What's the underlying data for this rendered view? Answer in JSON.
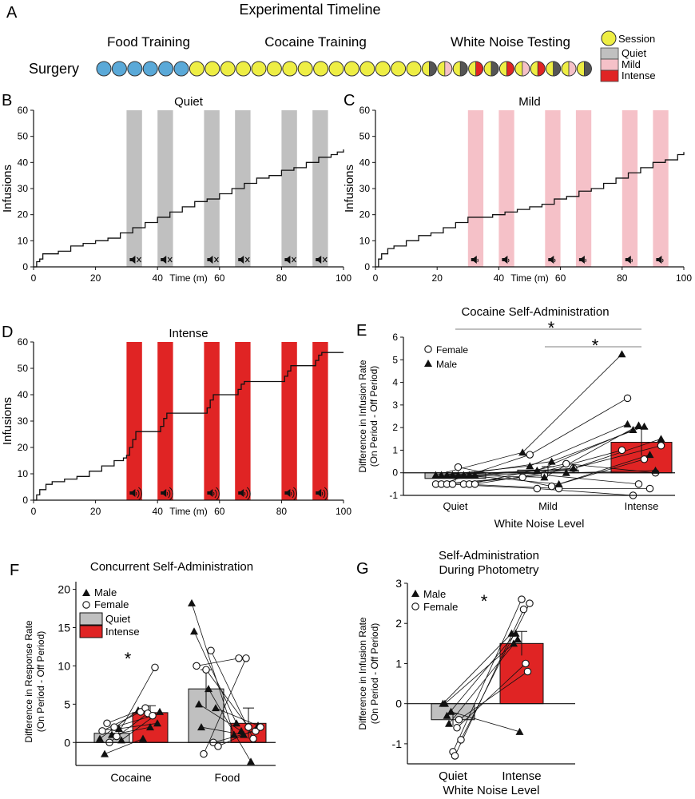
{
  "colors": {
    "blue": "#5aa9d8",
    "yellow": "#eeee44",
    "quiet": "#c0c0c0",
    "mild": "#f5c1c8",
    "intense": "#e02424",
    "line": "#111111"
  },
  "panel_a": {
    "letter": "A",
    "title": "Experimental Timeline",
    "phase_food": "Food Training",
    "phase_cocaine": "Cocaine Training",
    "phase_noise": "White Noise Testing",
    "surgery": "Surgery",
    "sessions": [
      "blue",
      "blue",
      "blue",
      "blue",
      "blue",
      "blue",
      "yellow",
      "yellow",
      "yellow",
      "yellow",
      "yellow",
      "yellow",
      "yellow",
      "yellow",
      "yellow",
      "yellow",
      "yellow",
      "yellow",
      "yellow",
      "yellow",
      "yellow",
      "quiet",
      "mild",
      "quiet",
      "intense",
      "quiet",
      "intense",
      "mild",
      "intense",
      "quiet",
      "mild",
      "quiet"
    ],
    "legend": [
      {
        "key": "session",
        "label": "Session"
      },
      {
        "key": "quiet",
        "label": "Quiet"
      },
      {
        "key": "mild",
        "label": "Mild"
      },
      {
        "key": "intense",
        "label": "Intense"
      }
    ]
  },
  "chart_data": [
    {
      "id": "B",
      "type": "line",
      "letter": "B",
      "title": "Quiet",
      "condition": "quiet",
      "xlabel": "Time (m)",
      "ylabel": "Infusions",
      "xlim": [
        0,
        100
      ],
      "ylim": [
        0,
        60
      ],
      "xticks": [
        0,
        20,
        40,
        60,
        80,
        100
      ],
      "yticks": [
        0,
        10,
        20,
        30,
        40,
        50,
        60
      ],
      "on_periods": [
        [
          30,
          35
        ],
        [
          40,
          45
        ],
        [
          55,
          60
        ],
        [
          65,
          70
        ],
        [
          80,
          85
        ],
        [
          90,
          95
        ]
      ],
      "x": [
        0,
        1,
        2,
        3,
        5,
        8,
        12,
        16,
        20,
        24,
        28,
        32,
        36,
        40,
        44,
        48,
        52,
        56,
        60,
        64,
        68,
        72,
        76,
        80,
        84,
        88,
        92,
        96,
        98,
        100
      ],
      "y": [
        0,
        2,
        3,
        5,
        5,
        6,
        8,
        9,
        10,
        11,
        13,
        15,
        17,
        19,
        21,
        23,
        25,
        26,
        28,
        30,
        32,
        34,
        35,
        37,
        38,
        40,
        42,
        43,
        44,
        45
      ]
    },
    {
      "id": "C",
      "type": "line",
      "letter": "C",
      "title": "Mild",
      "condition": "mild",
      "xlabel": "Time (m)",
      "ylabel": "Infusions",
      "xlim": [
        0,
        100
      ],
      "ylim": [
        0,
        60
      ],
      "xticks": [
        0,
        20,
        40,
        60,
        80,
        100
      ],
      "yticks": [
        0,
        10,
        20,
        30,
        40,
        50,
        60
      ],
      "on_periods": [
        [
          30,
          35
        ],
        [
          40,
          45
        ],
        [
          55,
          60
        ],
        [
          65,
          70
        ],
        [
          80,
          85
        ],
        [
          90,
          95
        ]
      ],
      "x": [
        0,
        1,
        2,
        4,
        6,
        10,
        14,
        18,
        22,
        26,
        30,
        34,
        38,
        42,
        46,
        50,
        54,
        58,
        62,
        66,
        70,
        74,
        78,
        82,
        86,
        90,
        94,
        98,
        100
      ],
      "y": [
        0,
        3,
        5,
        7,
        8,
        10,
        12,
        13,
        15,
        17,
        19,
        19,
        20,
        21,
        22,
        23,
        24,
        26,
        27,
        29,
        30,
        32,
        34,
        36,
        38,
        40,
        41,
        43,
        44
      ]
    },
    {
      "id": "D",
      "type": "line",
      "letter": "D",
      "title": "Intense",
      "condition": "intense",
      "xlabel": "Time (m)",
      "ylabel": "Infusions",
      "xlim": [
        0,
        100
      ],
      "ylim": [
        0,
        60
      ],
      "xticks": [
        0,
        20,
        40,
        60,
        80,
        100
      ],
      "yticks": [
        0,
        10,
        20,
        30,
        40,
        50,
        60
      ],
      "on_periods": [
        [
          30,
          35
        ],
        [
          40,
          45
        ],
        [
          55,
          60
        ],
        [
          65,
          70
        ],
        [
          80,
          85
        ],
        [
          90,
          95
        ]
      ],
      "x": [
        0,
        1,
        2,
        4,
        6,
        10,
        14,
        18,
        22,
        26,
        29,
        30,
        31,
        32,
        33,
        35,
        40,
        41,
        42,
        43,
        45,
        55,
        56,
        57,
        58,
        60,
        65,
        66,
        67,
        68,
        70,
        80,
        81,
        82,
        83,
        85,
        90,
        91,
        92,
        93,
        95,
        100
      ],
      "y": [
        0,
        2,
        4,
        6,
        7,
        8,
        9,
        11,
        13,
        15,
        16,
        17,
        20,
        23,
        26,
        26,
        26,
        28,
        31,
        33,
        33,
        33,
        35,
        38,
        40,
        40,
        40,
        42,
        44,
        45,
        45,
        45,
        47,
        49,
        51,
        51,
        51,
        53,
        55,
        56,
        56,
        56
      ]
    },
    {
      "id": "E",
      "type": "bar",
      "letter": "E",
      "title": "Cocaine Self-Administration",
      "xlabel": "White Noise Level",
      "ylabel": "Difference in Infusion Rate",
      "ylabel2": "(On Period - Off Period)",
      "ylim": [
        -1,
        6
      ],
      "yticks": [
        -1,
        0,
        1,
        2,
        3,
        4,
        5,
        6
      ],
      "categories": [
        "Quiet",
        "Mild",
        "Intense"
      ],
      "values": [
        -0.25,
        0.12,
        1.35
      ],
      "errors": [
        0.1,
        0.15,
        0.6
      ],
      "significance": [
        "*",
        "*"
      ],
      "legend": [
        {
          "marker": "circle",
          "label": "Female"
        },
        {
          "marker": "triangle",
          "label": "Male"
        }
      ],
      "female": [
        [
          -0.5,
          -0.2,
          1.0
        ],
        [
          -0.5,
          0.8,
          3.3
        ],
        [
          -0.5,
          -0.7,
          -1.0
        ],
        [
          -0.5,
          -0.1,
          -0.5
        ],
        [
          0.25,
          -0.6,
          0.6
        ],
        [
          -0.5,
          -0.7,
          -0.7
        ],
        [
          -0.5,
          0.4,
          0.0
        ],
        [
          -0.5,
          0.2,
          1.2
        ]
      ],
      "male": [
        [
          -0.1,
          0.9,
          5.25
        ],
        [
          -0.1,
          0.3,
          2.15
        ],
        [
          -0.1,
          0.1,
          1.9
        ],
        [
          -0.1,
          -0.2,
          2.1
        ],
        [
          -0.1,
          0.5,
          2.05
        ],
        [
          -0.1,
          -0.5,
          0.8
        ],
        [
          -0.1,
          0.0,
          0.1
        ],
        [
          -0.1,
          0.2,
          1.5
        ]
      ]
    },
    {
      "id": "F",
      "type": "bar",
      "letter": "F",
      "title": "Concurrent Self-Administration",
      "ylabel": "Difference in Response Rate",
      "ylabel2": "(On Period - Off Period)",
      "ylim": [
        -3,
        21
      ],
      "yticks": [
        0,
        5,
        10,
        15,
        20
      ],
      "categories": [
        "Cocaine",
        "Food"
      ],
      "values_quiet": [
        1.2,
        7.0
      ],
      "values_intense": [
        3.9,
        2.5
      ],
      "errors_quiet": [
        0.5,
        2.5
      ],
      "errors_intense": [
        0.9,
        2.0
      ],
      "significance": "*",
      "legend": [
        {
          "marker": "triangle",
          "label": "Male"
        },
        {
          "marker": "circle",
          "label": "Female"
        },
        {
          "marker": "quiet",
          "label": "Quiet"
        },
        {
          "marker": "intense",
          "label": "Intense"
        }
      ],
      "cocaine_pairs": [
        [
          0.5,
          4.2,
          "m"
        ],
        [
          1.5,
          4.0,
          "f"
        ],
        [
          -1.5,
          0.5,
          "m"
        ],
        [
          2.5,
          4.5,
          "f"
        ],
        [
          0.0,
          3.8,
          "f"
        ],
        [
          1.0,
          2.0,
          "m"
        ],
        [
          2.0,
          3.5,
          "f"
        ],
        [
          0.8,
          9.8,
          "f"
        ],
        [
          1.8,
          2.5,
          "m"
        ],
        [
          0.3,
          4.0,
          "m"
        ]
      ],
      "food_pairs": [
        [
          18.2,
          1.0,
          "m"
        ],
        [
          14.5,
          2.5,
          "m"
        ],
        [
          10.0,
          11.0,
          "f"
        ],
        [
          5.0,
          1.5,
          "m"
        ],
        [
          2.0,
          1.0,
          "m"
        ],
        [
          -1.5,
          11.0,
          "f"
        ],
        [
          9.5,
          2.0,
          "f"
        ],
        [
          7.0,
          -2.5,
          "m"
        ],
        [
          12.0,
          0.5,
          "f"
        ],
        [
          0.0,
          1.5,
          "f"
        ],
        [
          4.5,
          2.2,
          "m"
        ],
        [
          -0.5,
          2.0,
          "f"
        ]
      ]
    },
    {
      "id": "G",
      "type": "bar",
      "letter": "G",
      "title": "Self-Administration",
      "title2": "During Photometry",
      "xlabel": "White Noise Level",
      "ylabel": "Difference in Infusion Rate",
      "ylabel2": "(On Period - Off Period)",
      "ylim": [
        -1.5,
        3
      ],
      "yticks": [
        -1,
        0,
        1,
        2,
        3
      ],
      "categories": [
        "Quiet",
        "Intense"
      ],
      "values": [
        -0.4,
        1.5
      ],
      "errors": [
        0.15,
        0.3
      ],
      "significance": "*",
      "legend": [
        {
          "marker": "triangle",
          "label": "Male"
        },
        {
          "marker": "circle",
          "label": "Female"
        }
      ],
      "pairs": [
        [
          0.0,
          1.75,
          "m"
        ],
        [
          0.0,
          1.5,
          "m"
        ],
        [
          -0.3,
          1.75,
          "m"
        ],
        [
          -0.5,
          1.6,
          "m"
        ],
        [
          -0.2,
          -0.7,
          "m"
        ],
        [
          -1.2,
          2.6,
          "f"
        ],
        [
          -1.3,
          2.35,
          "f"
        ],
        [
          -0.6,
          1.0,
          "f"
        ],
        [
          -0.4,
          0.8,
          "f"
        ],
        [
          -0.9,
          2.5,
          "f"
        ]
      ]
    }
  ]
}
